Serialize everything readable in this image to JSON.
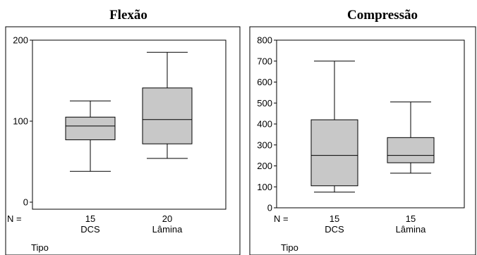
{
  "chart_data": [
    {
      "type": "box",
      "title": "Flexão",
      "xlabel": "Tipo",
      "ylabel": "",
      "ylim": [
        0,
        200
      ],
      "y_ticks": [
        0,
        100,
        200
      ],
      "n_label": "N =",
      "categories": [
        "DCS",
        "Lâmina"
      ],
      "n": [
        "15",
        "20"
      ],
      "boxes": [
        {
          "category": "DCS",
          "whisker_low": 38,
          "q1": 77,
          "median": 94,
          "q3": 105,
          "whisker_high": 125
        },
        {
          "category": "Lâmina",
          "whisker_low": 54,
          "q1": 72,
          "median": 102,
          "q3": 141,
          "whisker_high": 185
        }
      ],
      "colors": {
        "box_fill": "#c8c8c8",
        "line": "#000000"
      }
    },
    {
      "type": "box",
      "title": "Compressão",
      "xlabel": "Tipo",
      "ylabel": "",
      "ylim": [
        0,
        800
      ],
      "y_ticks": [
        0,
        100,
        200,
        300,
        400,
        500,
        600,
        700,
        800
      ],
      "n_label": "N =",
      "categories": [
        "DCS",
        "Lâmina"
      ],
      "n": [
        "15",
        "15"
      ],
      "boxes": [
        {
          "category": "DCS",
          "whisker_low": 75,
          "q1": 105,
          "median": 250,
          "q3": 420,
          "whisker_high": 700
        },
        {
          "category": "Lâmina",
          "whisker_low": 165,
          "q1": 215,
          "median": 250,
          "q3": 335,
          "whisker_high": 505
        }
      ],
      "colors": {
        "box_fill": "#c8c8c8",
        "line": "#000000"
      }
    }
  ]
}
